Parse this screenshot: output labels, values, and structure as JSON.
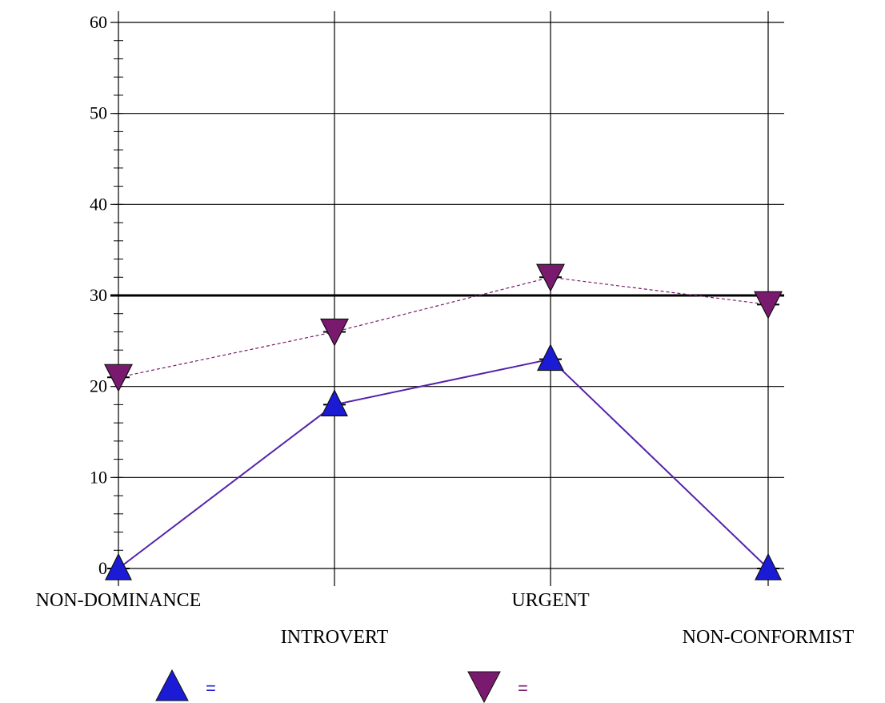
{
  "chart_data": {
    "type": "line",
    "categories": [
      "NON-DOMINANCE",
      "INTROVERT",
      "URGENT",
      "NON-CONFORMIST"
    ],
    "ylim": [
      0,
      60
    ],
    "y_major_ticks": [
      "0",
      "10",
      "20",
      "30",
      "40",
      "50",
      "60"
    ],
    "reference_line": 30,
    "grid": true,
    "series": [
      {
        "marker": "triangle-up",
        "color": "#1b1bd6",
        "line_color": "#5522aa",
        "line_style": "solid",
        "values": [
          0,
          18,
          23,
          0
        ]
      },
      {
        "marker": "triangle-down",
        "color": "#7a1a6e",
        "line_color": "#7a1a6e",
        "line_style": "dashed",
        "values": [
          21,
          26,
          32,
          29
        ]
      }
    ],
    "legend": [
      {
        "marker": "triangle-up",
        "color": "#1b1bd6",
        "text": "="
      },
      {
        "marker": "triangle-down",
        "color": "#7a1a6e",
        "text": "="
      }
    ]
  }
}
